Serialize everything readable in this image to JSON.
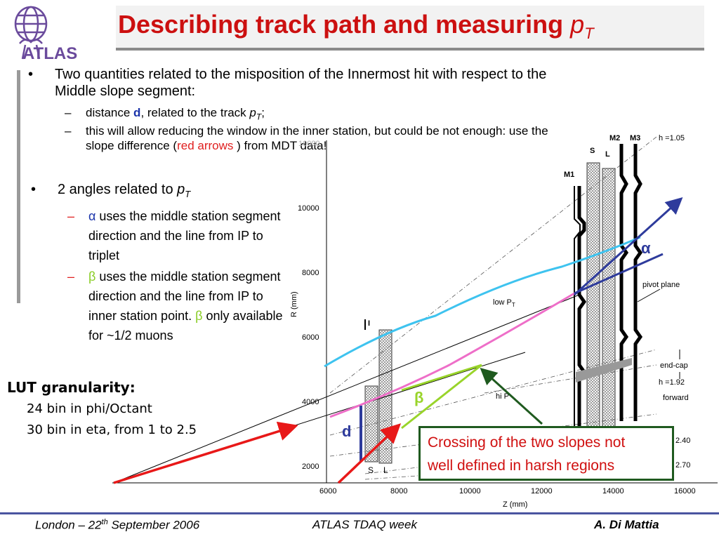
{
  "title": {
    "main": "Describing track path and measuring ",
    "pt": "p",
    "pt_sub": "T"
  },
  "logo": {
    "text": "ATLAS"
  },
  "bullet1": {
    "text": "Two quantities related to the misposition of the Innermost hit with respect to the Middle slope segment:",
    "sub1_pre": "distance ",
    "sub1_d": "d",
    "sub1_mid": ", related to the track ",
    "sub1_p": "p",
    "sub1_T": "T",
    "sub1_end": ";",
    "sub2_pre": "this will allow reducing the window in the inner station, but could be not enough: use the slope difference (",
    "sub2_red": "red arrows",
    "sub2_end": " ) from MDT data!"
  },
  "bullet2": {
    "pre": "2 angles related to ",
    "p": "p",
    "T": "T",
    "alpha_sym": "α",
    "alpha_text": " uses the middle station segment direction and the line from IP to triplet",
    "beta_sym": "β",
    "beta_text": " uses the middle station segment direction and the line from IP to inner station point. ",
    "beta_sym2": "β",
    "beta_text2": " only available for ~1/2 muons"
  },
  "lut": {
    "heading": "LUT granularity:",
    "line1": "24 bin in phi/Octant",
    "line2": "30 bin in eta, from 1 to 2.5"
  },
  "callout": {
    "line1": "Crossing of the two slopes not",
    "line2": "well defined in harsh regions"
  },
  "diagram": {
    "ylabel": "R (mm)",
    "xlabel": "Z (mm)",
    "yticks": [
      "10000",
      "8000",
      "6000",
      "4000",
      "2000"
    ],
    "xticks": [
      "6000",
      "8000",
      "10000",
      "12000",
      "14000",
      "16000"
    ],
    "labels": {
      "M1": "M1",
      "M2": "M2",
      "M3": "M3",
      "S": "S",
      "L": "L",
      "I": "I",
      "S2": "S",
      "L2": "L",
      "eta105": "h  =1.05",
      "pivot": "pivot plane",
      "lowpt": "low P",
      "lowpt_sub": "T",
      "hipt": "hi P",
      "endcap": "end-cap",
      "eta192": "h  =1.92",
      "forward": "forward",
      "eta240": "2.40",
      "eta270": "2.70",
      "faded": "10000"
    },
    "alpha": "α",
    "beta": "β",
    "d": "d"
  },
  "footer": {
    "left_pre": "London – 22",
    "left_sup": "th",
    "left_post": " September 2006",
    "center": "ATLAS TDAQ week",
    "right": "A. Di Mattia"
  },
  "colors": {
    "title": "#cc1010",
    "cyan": "#3ec3ef",
    "pink": "#ee6ec8",
    "green_arrow": "#99d42a",
    "blue_arrow": "#2e3b9c",
    "red_arrow": "#e81818",
    "callout_border": "#1f5a1f"
  }
}
